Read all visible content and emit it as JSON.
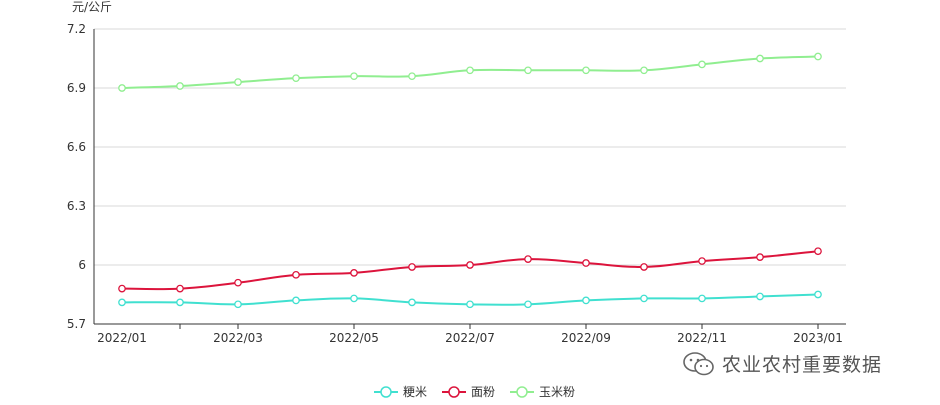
{
  "chart_data": {
    "type": "line",
    "ylabel": "元/公斤",
    "ylim": [
      5.7,
      7.2
    ],
    "yticks": [
      5.7,
      6,
      6.3,
      6.6,
      6.9,
      7.2
    ],
    "ytick_labels": [
      "5.7",
      "6",
      "6.3",
      "6.6",
      "6.9",
      "7.2"
    ],
    "x": [
      "2022/01",
      "2022/02",
      "2022/03",
      "2022/04",
      "2022/05",
      "2022/06",
      "2022/07",
      "2022/08",
      "2022/09",
      "2022/10",
      "2022/11",
      "2022/12",
      "2023/01"
    ],
    "xtick_labels": [
      "2022/01",
      "2022/03",
      "2022/05",
      "2022/07",
      "2022/09",
      "2022/11",
      "2023/01"
    ],
    "grid": true,
    "legend_position": "bottom",
    "series": [
      {
        "name": "粳米",
        "color": "#40e0d0",
        "values": [
          5.81,
          5.81,
          5.8,
          5.82,
          5.83,
          5.81,
          5.8,
          5.8,
          5.82,
          5.83,
          5.83,
          5.84,
          5.85
        ]
      },
      {
        "name": "面粉",
        "color": "#dc143c",
        "values": [
          5.88,
          5.88,
          5.91,
          5.95,
          5.96,
          5.99,
          6.0,
          6.03,
          6.01,
          5.99,
          6.02,
          6.04,
          6.07
        ]
      },
      {
        "name": "玉米粉",
        "color": "#90ee90",
        "values": [
          6.9,
          6.91,
          6.93,
          6.95,
          6.96,
          6.96,
          6.99,
          6.99,
          6.99,
          6.99,
          7.02,
          7.05,
          7.06
        ]
      }
    ]
  },
  "watermark": {
    "text": "农业农村重要数据",
    "icon": "wechat-icon"
  }
}
